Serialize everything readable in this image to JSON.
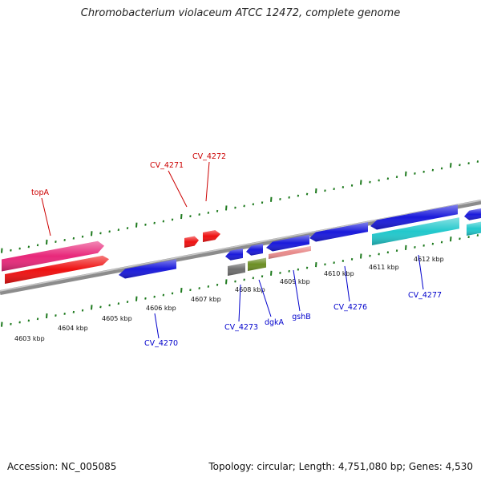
{
  "title": "Chromobacterium violaceum ATCC 12472, complete genome",
  "footer": {
    "accession": "Accession: NC_005085",
    "summary": "Topology: circular; Length: 4,751,080 bp; Genes: 4,530"
  },
  "colors": {
    "backbone": "#8c8c8c",
    "tick": "#1e7a1e",
    "forward_label": "#cc0000",
    "reverse_label": "#0000cc",
    "scale_label": "#111111"
  },
  "scale": {
    "unit": "kbp",
    "labels": [
      "4603 kbp",
      "4604 kbp",
      "4605 kbp",
      "4606 kbp",
      "4607 kbp",
      "4608 kbp",
      "4609 kbp",
      "4610 kbp",
      "4611 kbp",
      "4612 kbp"
    ]
  },
  "features": [
    {
      "id": "topA",
      "label": "topA",
      "strand": "+",
      "track": "cds",
      "color": "#e8287a"
    },
    {
      "id": "topA-gene",
      "label": "",
      "strand": "+",
      "track": "gene",
      "color": "#ee1111"
    },
    {
      "id": "CV_4271",
      "label": "CV_4271",
      "strand": "+",
      "track": "gene",
      "color": "#ee1111"
    },
    {
      "id": "CV_4272",
      "label": "CV_4272",
      "strand": "+",
      "track": "gene",
      "color": "#ee1111"
    },
    {
      "id": "CV_4270",
      "label": "CV_4270",
      "strand": "-",
      "track": "gene",
      "color": "#1a1adb"
    },
    {
      "id": "CV_4273",
      "label": "CV_4273",
      "strand": "-",
      "track": "gene",
      "color": "#1a1adb"
    },
    {
      "id": "CV_4273-b",
      "label": "",
      "strand": "-",
      "track": "other",
      "color": "#6e6e6e"
    },
    {
      "id": "dgkA",
      "label": "dgkA",
      "strand": "-",
      "track": "gene",
      "color": "#1a1adb"
    },
    {
      "id": "dgkA-b",
      "label": "",
      "strand": "-",
      "track": "other",
      "color": "#6b8e23"
    },
    {
      "id": "gshB",
      "label": "gshB",
      "strand": "-",
      "track": "gene",
      "color": "#1a1adb"
    },
    {
      "id": "gshB-b",
      "label": "",
      "strand": "-",
      "track": "misc",
      "color": "#e88a8a"
    },
    {
      "id": "CV_4276",
      "label": "CV_4276",
      "strand": "-",
      "track": "gene",
      "color": "#1a1adb"
    },
    {
      "id": "CV_4277",
      "label": "CV_4277",
      "strand": "-",
      "track": "gene",
      "color": "#1a1adb"
    },
    {
      "id": "CV_4277-cds",
      "label": "",
      "strand": "-",
      "track": "cds",
      "color": "#22c8cc"
    },
    {
      "id": "next-gene",
      "label": "",
      "strand": "-",
      "track": "gene",
      "color": "#1a1adb"
    },
    {
      "id": "next-cds",
      "label": "",
      "strand": "-",
      "track": "cds",
      "color": "#22c8cc"
    }
  ]
}
